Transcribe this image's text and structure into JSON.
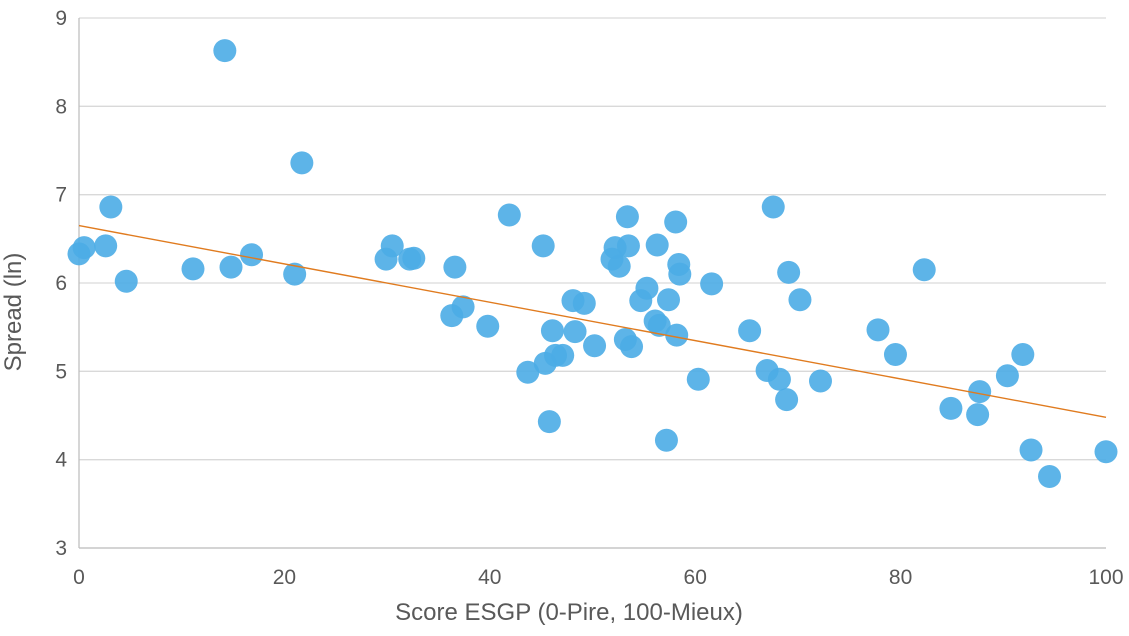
{
  "chart_data": {
    "type": "scatter",
    "xlabel": "Score ESGP (0-Pire, 100-Mieux)",
    "ylabel": "Spread (ln)",
    "xlim": [
      0,
      100
    ],
    "ylim": [
      3,
      9
    ],
    "xticks": [
      "0",
      "20",
      "40",
      "60",
      "80",
      "100"
    ],
    "yticks": [
      "3",
      "4",
      "5",
      "6",
      "7",
      "8",
      "9"
    ],
    "grid": "horizontal",
    "legend": "none",
    "marker_color": "#4BACE6",
    "trendline_color": "#E07B1F",
    "trendline": {
      "x": [
        0,
        100
      ],
      "y": [
        6.65,
        4.48
      ]
    },
    "points": [
      {
        "x": 0.0,
        "y": 6.33
      },
      {
        "x": 0.5,
        "y": 6.4
      },
      {
        "x": 2.6,
        "y": 6.42
      },
      {
        "x": 3.1,
        "y": 6.86
      },
      {
        "x": 4.6,
        "y": 6.02
      },
      {
        "x": 11.1,
        "y": 6.16
      },
      {
        "x": 14.2,
        "y": 8.63
      },
      {
        "x": 14.8,
        "y": 6.18
      },
      {
        "x": 16.8,
        "y": 6.32
      },
      {
        "x": 21.0,
        "y": 6.1
      },
      {
        "x": 21.7,
        "y": 7.36
      },
      {
        "x": 29.9,
        "y": 6.27
      },
      {
        "x": 30.5,
        "y": 6.42
      },
      {
        "x": 32.2,
        "y": 6.27
      },
      {
        "x": 32.6,
        "y": 6.28
      },
      {
        "x": 36.3,
        "y": 5.63
      },
      {
        "x": 36.6,
        "y": 6.18
      },
      {
        "x": 37.4,
        "y": 5.73
      },
      {
        "x": 39.8,
        "y": 5.51
      },
      {
        "x": 41.9,
        "y": 6.77
      },
      {
        "x": 43.7,
        "y": 4.99
      },
      {
        "x": 45.2,
        "y": 6.42
      },
      {
        "x": 45.4,
        "y": 5.09
      },
      {
        "x": 45.8,
        "y": 4.43
      },
      {
        "x": 46.1,
        "y": 5.46
      },
      {
        "x": 46.4,
        "y": 5.18
      },
      {
        "x": 47.1,
        "y": 5.18
      },
      {
        "x": 48.1,
        "y": 5.8
      },
      {
        "x": 48.3,
        "y": 5.45
      },
      {
        "x": 49.2,
        "y": 5.77
      },
      {
        "x": 50.2,
        "y": 5.29
      },
      {
        "x": 51.9,
        "y": 6.27
      },
      {
        "x": 52.2,
        "y": 6.4
      },
      {
        "x": 52.6,
        "y": 6.19
      },
      {
        "x": 53.2,
        "y": 5.36
      },
      {
        "x": 53.4,
        "y": 6.75
      },
      {
        "x": 53.5,
        "y": 6.42
      },
      {
        "x": 53.8,
        "y": 5.28
      },
      {
        "x": 54.7,
        "y": 5.8
      },
      {
        "x": 55.3,
        "y": 5.94
      },
      {
        "x": 56.1,
        "y": 5.57
      },
      {
        "x": 56.3,
        "y": 6.43
      },
      {
        "x": 56.5,
        "y": 5.52
      },
      {
        "x": 57.2,
        "y": 4.22
      },
      {
        "x": 57.4,
        "y": 5.81
      },
      {
        "x": 58.1,
        "y": 6.69
      },
      {
        "x": 58.2,
        "y": 5.41
      },
      {
        "x": 58.4,
        "y": 6.21
      },
      {
        "x": 58.5,
        "y": 6.1
      },
      {
        "x": 60.3,
        "y": 4.91
      },
      {
        "x": 61.6,
        "y": 5.99
      },
      {
        "x": 65.3,
        "y": 5.46
      },
      {
        "x": 67.0,
        "y": 5.01
      },
      {
        "x": 67.6,
        "y": 6.86
      },
      {
        "x": 68.2,
        "y": 4.91
      },
      {
        "x": 68.9,
        "y": 4.68
      },
      {
        "x": 69.1,
        "y": 6.12
      },
      {
        "x": 70.2,
        "y": 5.81
      },
      {
        "x": 72.2,
        "y": 4.89
      },
      {
        "x": 77.8,
        "y": 5.47
      },
      {
        "x": 79.5,
        "y": 5.19
      },
      {
        "x": 82.3,
        "y": 6.15
      },
      {
        "x": 84.9,
        "y": 4.58
      },
      {
        "x": 87.5,
        "y": 4.51
      },
      {
        "x": 87.7,
        "y": 4.77
      },
      {
        "x": 90.4,
        "y": 4.95
      },
      {
        "x": 91.9,
        "y": 5.19
      },
      {
        "x": 92.7,
        "y": 4.11
      },
      {
        "x": 94.5,
        "y": 3.81
      },
      {
        "x": 100.0,
        "y": 4.09
      }
    ]
  }
}
